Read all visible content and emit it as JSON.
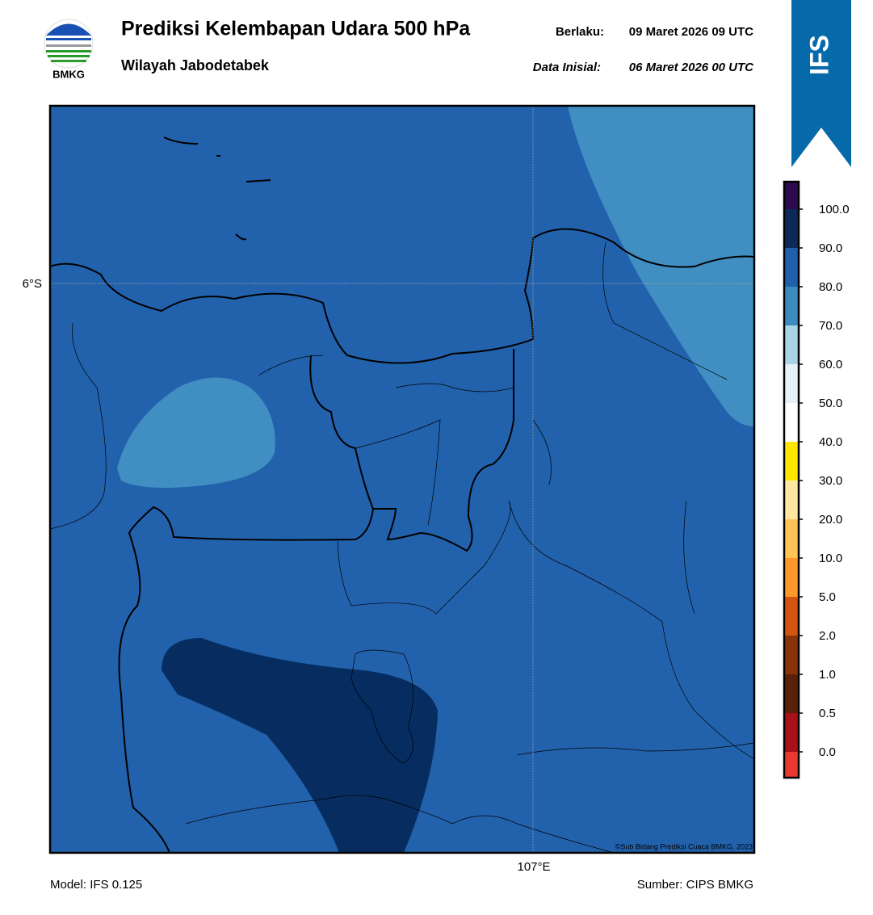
{
  "header": {
    "logo_text": "BMKG",
    "title": "Prediksi Kelembapan Udara 500 hPa",
    "subtitle": "Wilayah Jabodetabek",
    "valid_label": "Berlaku:",
    "valid_value": "09 Maret 2026 09 UTC",
    "init_label": "Data Inisial:",
    "init_value": "06 Maret 2026 00 UTC"
  },
  "badge": "IFS",
  "map": {
    "lat_label": "6°S",
    "lon_label": "107°E",
    "credit": "©Sub Bidang Prediksi Cuaca BMKG, 2023"
  },
  "colorbar": {
    "colors": [
      "#e8382f",
      "#a8101a",
      "#5a2108",
      "#8a3208",
      "#d2540e",
      "#ff982a",
      "#ffc456",
      "#ffe7a0",
      "#ffe600",
      "#ffffff",
      "#e6f1f8",
      "#a8d4e6",
      "#3a8cc0",
      "#2060aa",
      "#0b2a55",
      "#2d0a4e"
    ],
    "ticks": [
      {
        "value": 0,
        "label": "0.0"
      },
      0.5,
      {
        "value": 1,
        "label": "1.0"
      },
      {
        "value": 2,
        "label": "2.0"
      },
      {
        "value": 5,
        "label": "5.0"
      },
      {
        "value": 10,
        "label": "10.0"
      },
      {
        "value": 20,
        "label": "20.0"
      },
      {
        "value": 30,
        "label": "30.0"
      },
      {
        "value": 40,
        "label": "40.0"
      },
      {
        "value": 50,
        "label": "50.0"
      },
      {
        "value": 60,
        "label": "60.0"
      },
      {
        "value": 70,
        "label": "70.0"
      },
      {
        "value": 80,
        "label": "80.0"
      },
      {
        "value": 90,
        "label": "90.0"
      },
      {
        "value": 100,
        "label": "100.0"
      }
    ]
  },
  "footer": {
    "model": "Model: IFS 0.125",
    "source": "Sumber: CIPS BMKG"
  }
}
